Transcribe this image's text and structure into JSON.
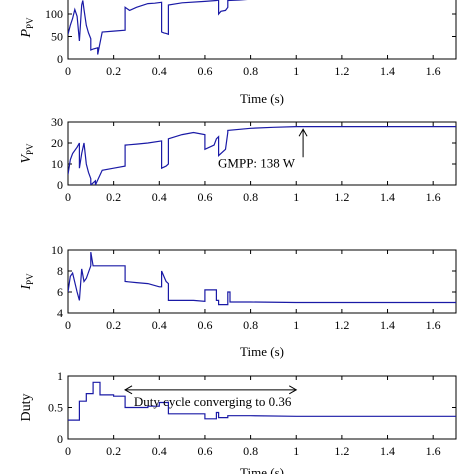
{
  "colors": {
    "series": "#1a1aa6",
    "axis": "#000000"
  },
  "chart_data": [
    {
      "type": "line",
      "ylabel_main": "P",
      "ylabel_sub": "PV",
      "xlabel": "Time (s)",
      "xlim": [
        0,
        1.7
      ],
      "ylim": [
        0,
        140
      ],
      "xticks": [
        "0",
        "0.2",
        "0.4",
        "0.6",
        "0.8",
        "1",
        "1.2",
        "1.4",
        "1.6"
      ],
      "yticks": [
        "0",
        "50",
        "100"
      ],
      "x": [
        0,
        0.01,
        0.02,
        0.03,
        0.04,
        0.05,
        0.06,
        0.065,
        0.07,
        0.08,
        0.09,
        0.1,
        0.1,
        0.11,
        0.13,
        0.13,
        0.15,
        0.2,
        0.25,
        0.25,
        0.27,
        0.3,
        0.35,
        0.38,
        0.41,
        0.41,
        0.42,
        0.43,
        0.44,
        0.44,
        0.5,
        0.6,
        0.65,
        0.66,
        0.66,
        0.67,
        0.69,
        0.7,
        0.7,
        0.75,
        0.8,
        0.85,
        0.9,
        0.95,
        1.0,
        1.1,
        1.2,
        1.72
      ],
      "y": [
        55,
        75,
        90,
        110,
        95,
        40,
        120,
        130,
        110,
        75,
        58,
        45,
        20,
        22,
        25,
        10,
        60,
        62,
        64,
        115,
        108,
        115,
        123,
        124,
        126,
        60,
        58,
        57,
        55,
        120,
        125,
        128,
        130,
        131,
        100,
        106,
        108,
        115,
        130,
        131,
        133,
        135,
        136,
        137,
        138,
        138,
        138,
        138
      ]
    },
    {
      "type": "line",
      "ylabel_main": "V",
      "ylabel_sub": "PV",
      "xlabel": "",
      "xlim": [
        0,
        1.7
      ],
      "ylim": [
        0,
        30
      ],
      "xticks": [
        "0",
        "0.2",
        "0.4",
        "0.6",
        "0.8",
        "1",
        "1.2",
        "1.4",
        "1.6"
      ],
      "yticks": [
        "0",
        "10",
        "20",
        "30"
      ],
      "annotation": "GMPP: 138 W",
      "annotation_point": [
        1.03,
        27.5
      ],
      "x": [
        0,
        0.01,
        0.02,
        0.04,
        0.05,
        0.05,
        0.06,
        0.07,
        0.08,
        0.09,
        0.1,
        0.1,
        0.12,
        0.12,
        0.15,
        0.2,
        0.25,
        0.25,
        0.3,
        0.35,
        0.41,
        0.41,
        0.43,
        0.44,
        0.44,
        0.5,
        0.55,
        0.6,
        0.6,
        0.64,
        0.65,
        0.66,
        0.66,
        0.69,
        0.7,
        0.7,
        0.8,
        0.9,
        1.0,
        1.72
      ],
      "y": [
        5,
        12,
        15,
        18,
        20,
        8,
        15,
        20,
        10,
        6,
        3,
        0,
        2,
        0,
        7,
        8,
        9,
        19,
        19.5,
        20,
        21,
        8,
        9,
        10,
        22,
        24,
        25,
        24,
        17,
        19,
        22,
        23,
        14,
        17,
        25,
        26,
        27,
        27.5,
        27.8,
        27.8
      ]
    },
    {
      "type": "line",
      "ylabel_main": "I",
      "ylabel_sub": "PV",
      "xlabel": "Time (s)",
      "xlim": [
        0,
        1.7
      ],
      "ylim": [
        4,
        10
      ],
      "xticks": [
        "0",
        "0.2",
        "0.4",
        "0.6",
        "0.8",
        "1",
        "1.2",
        "1.4",
        "1.6"
      ],
      "yticks": [
        "4",
        "6",
        "8",
        "10"
      ],
      "x": [
        0,
        0.01,
        0.02,
        0.04,
        0.05,
        0.06,
        0.07,
        0.08,
        0.1,
        0.1,
        0.11,
        0.12,
        0.25,
        0.25,
        0.3,
        0.35,
        0.4,
        0.41,
        0.41,
        0.43,
        0.44,
        0.44,
        0.55,
        0.6,
        0.6,
        0.65,
        0.65,
        0.66,
        0.66,
        0.7,
        0.7,
        0.71,
        0.71,
        0.8,
        1.0,
        1.72
      ],
      "y": [
        6,
        7.5,
        7.8,
        6,
        5.2,
        8.2,
        7,
        7.3,
        8.5,
        9.8,
        8.5,
        8.5,
        8.5,
        7,
        6.9,
        6.8,
        6.5,
        6.5,
        8,
        7,
        6.8,
        5.2,
        5.2,
        5.1,
        6.2,
        6.2,
        5.2,
        5.2,
        4.8,
        4.8,
        6,
        6,
        5.05,
        5.05,
        5.0,
        5.0
      ]
    },
    {
      "type": "line",
      "ylabel_main": "Duty",
      "ylabel_sub": "",
      "xlabel": "Time (s)",
      "xlim": [
        0,
        1.7
      ],
      "ylim": [
        0,
        1
      ],
      "xticks": [
        "0",
        "0.2",
        "0.4",
        "0.6",
        "0.8",
        "1",
        "1.2",
        "1.4",
        "1.6"
      ],
      "yticks": [
        "0",
        "0.5",
        "1"
      ],
      "annotation": "Duty cycle converging to 0.36",
      "annotation_range": [
        0.25,
        1.0
      ],
      "annotation_y": 0.78,
      "x": [
        0,
        0.05,
        0.05,
        0.08,
        0.08,
        0.11,
        0.11,
        0.14,
        0.14,
        0.2,
        0.2,
        0.25,
        0.25,
        0.35,
        0.35,
        0.4,
        0.4,
        0.44,
        0.44,
        0.6,
        0.6,
        0.65,
        0.65,
        0.66,
        0.66,
        0.7,
        0.7,
        0.8,
        1.0,
        1.72
      ],
      "y": [
        0.3,
        0.3,
        0.6,
        0.6,
        0.72,
        0.72,
        0.9,
        0.9,
        0.7,
        0.7,
        0.68,
        0.68,
        0.5,
        0.5,
        0.52,
        0.52,
        0.58,
        0.58,
        0.4,
        0.4,
        0.32,
        0.32,
        0.42,
        0.42,
        0.34,
        0.34,
        0.37,
        0.37,
        0.36,
        0.36
      ]
    }
  ]
}
